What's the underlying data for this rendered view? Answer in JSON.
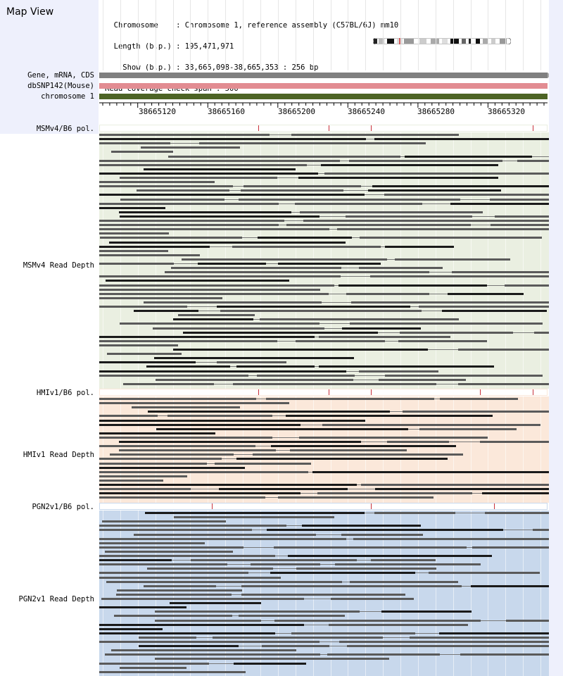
{
  "app": {
    "title": "Map View"
  },
  "info": {
    "lines": [
      "  Chromosome    : Chromosome 1, reference assembly (C57BL/6J) mm10",
      "  Length (b.p.) : 195,471,971",
      "    Show (b.p.) : 38,665,098-38,665,353 : 256 bp",
      "Read coverage check span : 500"
    ]
  },
  "tracks": {
    "gene": "Gene, mRNA, CDS",
    "snp": "dbSNP142(Mouse)",
    "chrom": "chromosome 1"
  },
  "ruler": {
    "ticks": [
      "38665120",
      "38665160",
      "38665200",
      "38665240",
      "38665280",
      "38665320"
    ]
  },
  "samples": [
    {
      "pol_label": "MSMv4/B6 pol.",
      "depth_label": "MSMv4 Read Depth",
      "bg": "#eaefe1"
    },
    {
      "pol_label": "HMIv1/B6 pol.",
      "depth_label": "HMIv1 Read Depth",
      "bg": "#fbe8da"
    },
    {
      "pol_label": "PGN2v1/B6 pol.",
      "depth_label": "PGN2v1 Read Depth",
      "bg": "#c8d8ec"
    }
  ],
  "colors": {
    "gene_bar": "#808080",
    "snp_bar": "#e28c92",
    "chrom_bar": "#4d6425",
    "read": "#5a5a5a",
    "read_dark": "#1a1a1a",
    "pol_marker": "#c8303a"
  }
}
